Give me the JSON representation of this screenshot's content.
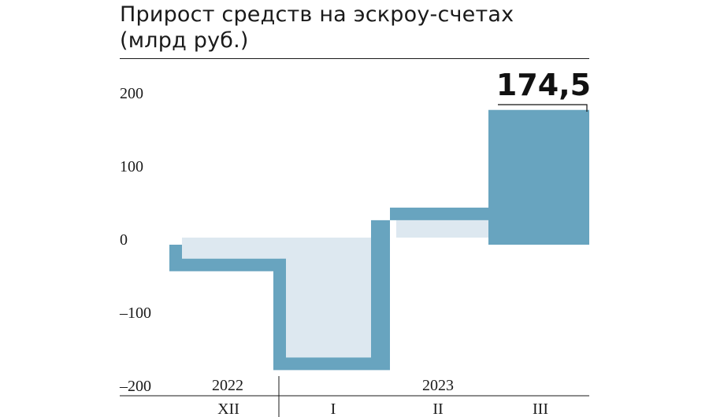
{
  "title_line1": "Прирост средств на эскроу-счетах",
  "title_line2": "(млрд руб.)",
  "colors": {
    "accent": "#68a4bf",
    "fill_light": "#dde8f0",
    "text": "#1a1a1a"
  },
  "chart_data": {
    "type": "waterfall-step",
    "title": "Прирост средств на эскроу-счетах (млрд руб.)",
    "unit": "млрд руб.",
    "ylim": [
      -200,
      200
    ],
    "yticks": [
      200,
      100,
      0,
      -100,
      -200
    ],
    "ytick_labels": [
      "200",
      "100",
      "0",
      "–100",
      "–200"
    ],
    "categories": [
      "XII",
      "I",
      "II",
      "III"
    ],
    "years": [
      {
        "label": "2022",
        "span": [
          0,
          0
        ]
      },
      {
        "label": "2023",
        "span": [
          1,
          3
        ]
      }
    ],
    "points": [
      {
        "x": "XII-start",
        "value": -46
      },
      {
        "x": "XII",
        "value": -46
      },
      {
        "x": "I",
        "value": -181
      },
      {
        "x": "II",
        "value": 41
      },
      {
        "x": "III",
        "value": 174.5
      }
    ],
    "callout": {
      "label": "174,5",
      "value": 174.5,
      "category": "III"
    },
    "grid": false,
    "legend": "none"
  }
}
